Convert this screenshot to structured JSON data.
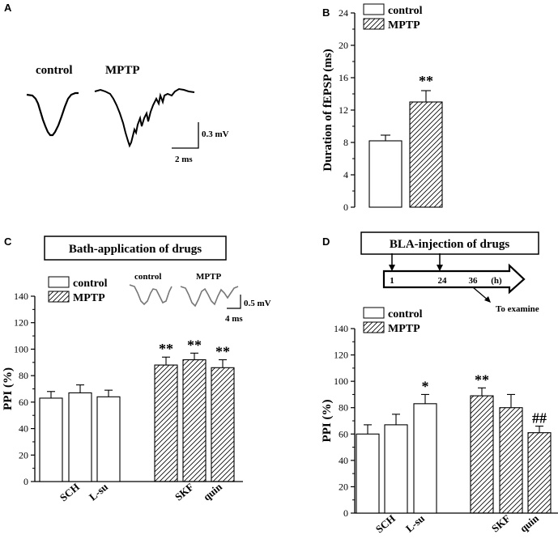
{
  "panels": {
    "A": {
      "letter": "A",
      "control_label": "control",
      "mptp_label": "MPTP",
      "scale_v": "0.3 mV",
      "scale_t": "2 ms"
    },
    "B": {
      "letter": "B"
    },
    "C": {
      "letter": "C",
      "box_title": "Bath-application of drugs",
      "inset_control": "control",
      "inset_mptp": "MPTP",
      "scale_v": "0.5 mV",
      "scale_t": "4 ms"
    },
    "D": {
      "letter": "D",
      "box_title": "BLA-injection of drugs",
      "timeline_ticks": [
        "1",
        "24",
        "36",
        "(h)"
      ],
      "timeline_note": "To examine"
    }
  },
  "legend": {
    "control": "control",
    "mptp": "MPTP"
  },
  "colors": {
    "bar_fill": "#ffffff",
    "stroke": "#000000",
    "hatch": "#000000"
  },
  "chart_data": [
    {
      "id": "B",
      "type": "bar",
      "ylabel": "Duration of fEPSP (ms)",
      "ylim": [
        0,
        24
      ],
      "yticks": [
        0,
        4,
        8,
        12,
        16,
        20,
        24
      ],
      "legend_position": "top",
      "series": [
        {
          "name": "control",
          "values": [
            8.2
          ],
          "errors": [
            0.7
          ]
        },
        {
          "name": "MPTP",
          "values": [
            13.0
          ],
          "errors": [
            1.4
          ]
        }
      ],
      "annotations": [
        {
          "series": "MPTP",
          "text": "**"
        }
      ]
    },
    {
      "id": "C",
      "type": "bar",
      "ylabel": "PPI (%)",
      "ylim": [
        0,
        140
      ],
      "yticks": [
        0,
        20,
        40,
        60,
        80,
        100,
        120,
        140
      ],
      "legend_position": "top-left",
      "categories": [
        "SCH",
        "L-su",
        "SKF",
        "quin"
      ],
      "bars": [
        {
          "group": "control",
          "value": 63,
          "error": 5
        },
        {
          "group": "control",
          "value": 67,
          "error": 6,
          "label": "SCH"
        },
        {
          "group": "control",
          "value": 64,
          "error": 5,
          "label": "L-su"
        },
        {
          "group": "MPTP",
          "value": 88,
          "error": 6,
          "sig": "**"
        },
        {
          "group": "MPTP",
          "value": 92,
          "error": 5,
          "sig": "**",
          "label": "SKF"
        },
        {
          "group": "MPTP",
          "value": 86,
          "error": 6,
          "sig": "**",
          "label": "quin"
        }
      ]
    },
    {
      "id": "D",
      "type": "bar",
      "ylabel": "PPI (%)",
      "ylim": [
        0,
        140
      ],
      "yticks": [
        0,
        20,
        40,
        60,
        80,
        100,
        120,
        140
      ],
      "legend_position": "top-left",
      "categories": [
        "SCH",
        "L-su",
        "SKF",
        "quin"
      ],
      "bars": [
        {
          "group": "control",
          "value": 60,
          "error": 7
        },
        {
          "group": "control",
          "value": 67,
          "error": 8,
          "label": "SCH"
        },
        {
          "group": "control",
          "value": 83,
          "error": 7,
          "sig": "*",
          "label": "L-su"
        },
        {
          "group": "MPTP",
          "value": 89,
          "error": 6,
          "sig": "**"
        },
        {
          "group": "MPTP",
          "value": 80,
          "error": 10,
          "label": "SKF"
        },
        {
          "group": "MPTP",
          "value": 61,
          "error": 5,
          "sig": "##",
          "label": "quin"
        }
      ]
    }
  ]
}
